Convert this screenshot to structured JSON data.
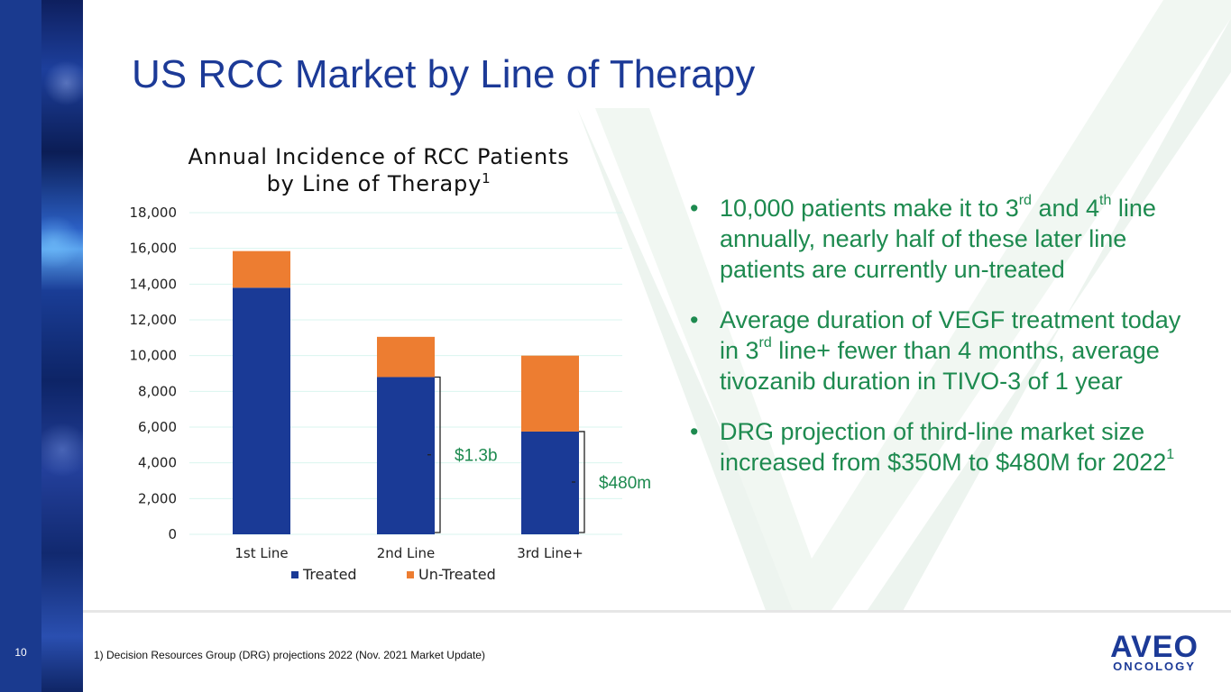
{
  "slide": {
    "title": "US RCC Market by Line of Therapy",
    "page_number": "10",
    "footnote": "1)  Decision Resources Group (DRG) projections 2022 (Nov. 2021 Market Update)",
    "logo": {
      "main": "AVEO",
      "sub": "ONCOLOGY"
    }
  },
  "bullets": [
    {
      "parts": [
        "10,000 patients make it to 3",
        "rd",
        " and 4",
        "th",
        " line annually, nearly half of these later line patients are currently un-treated"
      ]
    },
    {
      "parts": [
        "Average duration of VEGF treatment today in 3",
        "rd",
        " line+ fewer than 4 months, average tivozanib duration in TIVO-3 of 1 year"
      ]
    },
    {
      "parts": [
        "DRG projection of third-line market size increased from $350M to $480M for 2022",
        "1",
        ""
      ]
    }
  ],
  "colors": {
    "treated": "#1a3a96",
    "untreated": "#ed7d31",
    "title": "#1c3a97",
    "bullet_text": "#1d8a4f",
    "gridline": "#d9f5ef"
  },
  "chart_data": {
    "type": "bar",
    "stacked": true,
    "title": "Annual Incidence of RCC Patients",
    "title_line2": "by Line of Therapy",
    "title_superscript": "1",
    "categories": [
      "1st Line",
      "2nd Line",
      "3rd Line+"
    ],
    "series": [
      {
        "name": "Treated",
        "values": [
          13800,
          8800,
          5750
        ]
      },
      {
        "name": "Un-Treated",
        "values": [
          2050,
          2250,
          4250
        ]
      }
    ],
    "ylim": [
      0,
      18000
    ],
    "yticks": [
      0,
      2000,
      4000,
      6000,
      8000,
      10000,
      12000,
      14000,
      16000,
      18000
    ],
    "ytick_labels": [
      "0",
      "2,000",
      "4,000",
      "6,000",
      "8,000",
      "10,000",
      "12,000",
      "14,000",
      "16,000",
      "18,000"
    ],
    "xlabel": "",
    "ylabel": "",
    "legend_position": "bottom",
    "annotations": [
      {
        "text": "$1.3b",
        "category_index": 1
      },
      {
        "text": "$480m",
        "category_index": 2
      }
    ]
  }
}
